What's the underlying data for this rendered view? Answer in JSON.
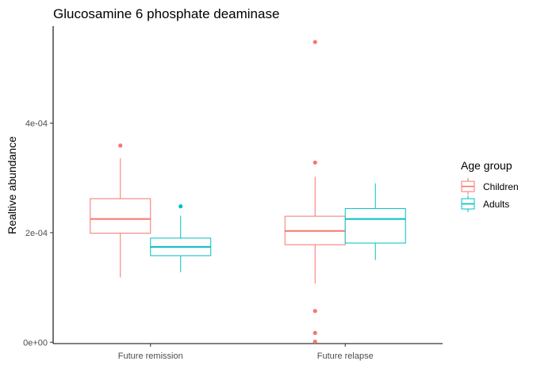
{
  "chart_data": {
    "type": "boxplot",
    "title": "Glucosamine 6 phosphate deaminase",
    "xlabel": "",
    "ylabel": "Realtive abundance",
    "ylim": [
      -2.5e-06,
      0.000577
    ],
    "y_ticks": [
      {
        "value": 0,
        "label": "0e+00"
      },
      {
        "value": 0.0002,
        "label": "2e-04"
      },
      {
        "value": 0.0004,
        "label": "4e-04"
      }
    ],
    "categories": [
      "Future remission",
      "Future relapse"
    ],
    "legend": {
      "title": "Age group",
      "position": "right"
    },
    "grid": false,
    "series": [
      {
        "name": "Children",
        "color": "#F8766D",
        "boxes": [
          {
            "category": "Future remission",
            "whisker_low": 0.000118,
            "q1": 0.000199,
            "median": 0.000225,
            "q3": 0.000262,
            "whisker_high": 0.000336,
            "outliers": [
              0.000359
            ]
          },
          {
            "category": "Future relapse",
            "whisker_low": 0.000107,
            "q1": 0.000178,
            "median": 0.000203,
            "q3": 0.00023,
            "whisker_high": 0.000302,
            "outliers": [
              0.000548,
              0.000328,
              5.7e-05,
              1.7e-05,
              1e-06
            ]
          }
        ]
      },
      {
        "name": "Adults",
        "color": "#00BFC4",
        "boxes": [
          {
            "category": "Future remission",
            "whisker_low": 0.000128,
            "q1": 0.000158,
            "median": 0.000174,
            "q3": 0.00019,
            "whisker_high": 0.000231,
            "outliers": [
              0.000248
            ]
          },
          {
            "category": "Future relapse",
            "whisker_low": 0.00015,
            "q1": 0.000181,
            "median": 0.000225,
            "q3": 0.000244,
            "whisker_high": 0.00029,
            "outliers": []
          }
        ]
      }
    ]
  }
}
